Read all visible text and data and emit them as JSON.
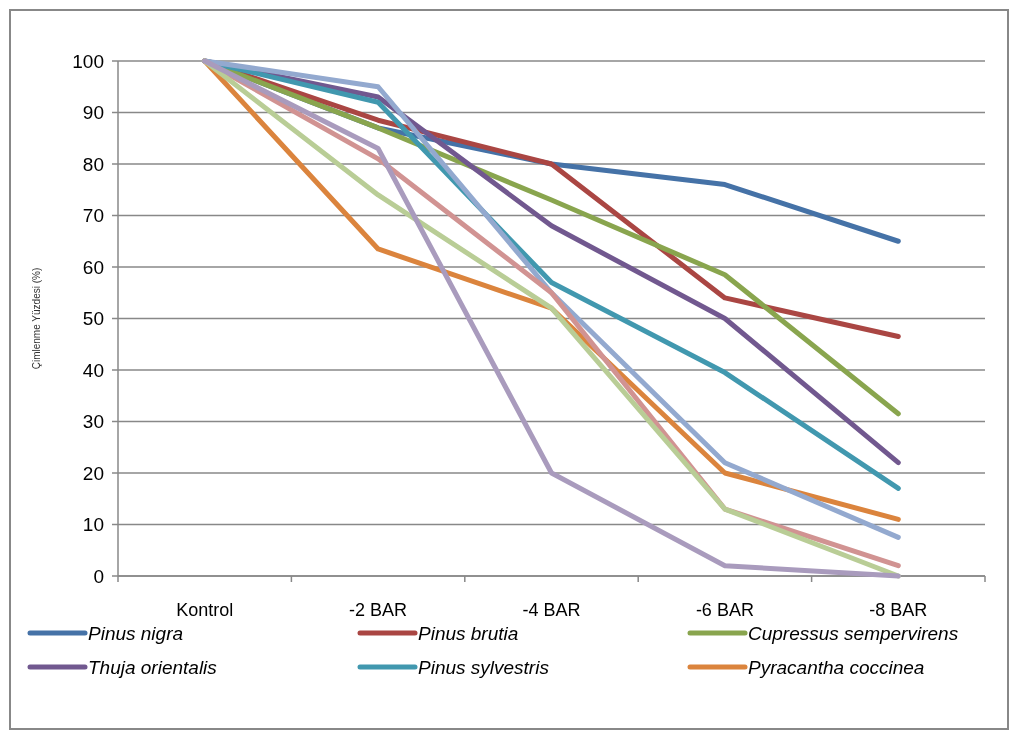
{
  "chart_data": {
    "type": "line",
    "ylabel": "Çimlenme Yüzdesi (%)",
    "categories": [
      "Kontrol",
      "-2 BAR",
      "-4 BAR",
      "-6 BAR",
      "-8 BAR"
    ],
    "ylim": [
      0,
      100
    ],
    "yticks": [
      0,
      10,
      20,
      30,
      40,
      50,
      60,
      70,
      80,
      90,
      100
    ],
    "grid": "y",
    "legend": "bottom",
    "marker": "none",
    "line_style": "solid",
    "series": [
      {
        "name": "Pinus nigra",
        "color": "#4572a7",
        "values": [
          100,
          87,
          80,
          76,
          65
        ]
      },
      {
        "name": "Pinus brutia",
        "color": "#aa4643",
        "values": [
          100,
          88.5,
          80,
          54,
          46.5
        ]
      },
      {
        "name": "Cupressus sempervirens",
        "color": "#89a54e",
        "values": [
          100,
          87,
          73,
          58.5,
          31.5
        ]
      },
      {
        "name": "Thuja orientalis",
        "color": "#71588f",
        "values": [
          100,
          93,
          68,
          50,
          22
        ]
      },
      {
        "name": "Pinus sylvestris",
        "color": "#4198af",
        "values": [
          100,
          92,
          57,
          39.5,
          17
        ]
      },
      {
        "name": "Pyracantha coccinea",
        "color": "#db843d",
        "values": [
          100,
          63.5,
          52,
          20,
          11
        ]
      },
      {
        "color": "#93a9cf",
        "values": [
          100,
          95,
          55,
          22,
          7.5
        ]
      },
      {
        "color": "#d19392",
        "values": [
          100,
          81,
          55,
          13,
          2
        ]
      },
      {
        "color": "#b9cd96",
        "values": [
          100,
          74,
          52,
          13,
          0
        ]
      },
      {
        "color": "#a99bbd",
        "values": [
          100,
          83,
          20,
          2,
          0
        ]
      }
    ]
  }
}
